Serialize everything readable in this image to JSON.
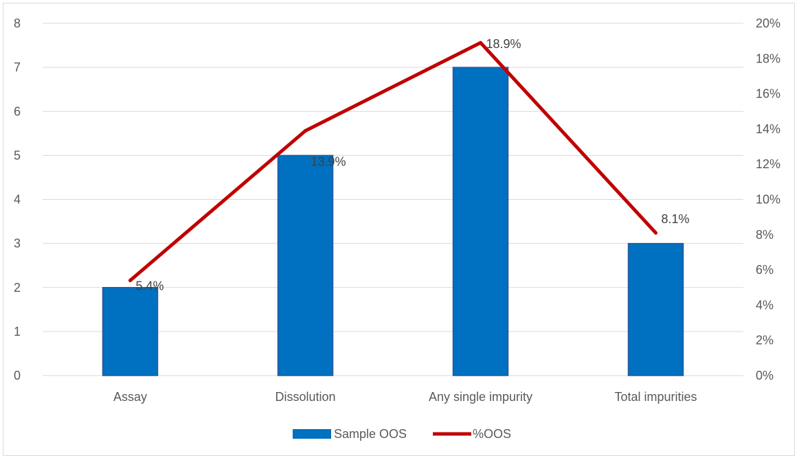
{
  "chart_data": {
    "type": "bar",
    "categories": [
      "Assay",
      "Dissolution",
      "Any single impurity",
      "Total impurities"
    ],
    "series": [
      {
        "name": "Sample OOS",
        "type": "bar",
        "axis": "left",
        "values": [
          2,
          5,
          7,
          3
        ],
        "color": "#0070c0"
      },
      {
        "name": "%OOS",
        "type": "line",
        "axis": "right",
        "values": [
          5.4,
          13.9,
          18.9,
          8.1
        ],
        "color": "#c00000",
        "data_labels": [
          "5.4%",
          "13.9%",
          "18.9%",
          "8.1%"
        ]
      }
    ],
    "y_left": {
      "lim": [
        0,
        8
      ],
      "ticks": [
        "0",
        "1",
        "2",
        "3",
        "4",
        "5",
        "6",
        "7",
        "8"
      ]
    },
    "y_right": {
      "lim": [
        0,
        20
      ],
      "ticks": [
        "0%",
        "2%",
        "4%",
        "6%",
        "8%",
        "10%",
        "12%",
        "14%",
        "16%",
        "18%",
        "20%"
      ]
    },
    "grid": true,
    "legend": "bottom",
    "title": "",
    "xlabel": "",
    "ylabel": ""
  }
}
